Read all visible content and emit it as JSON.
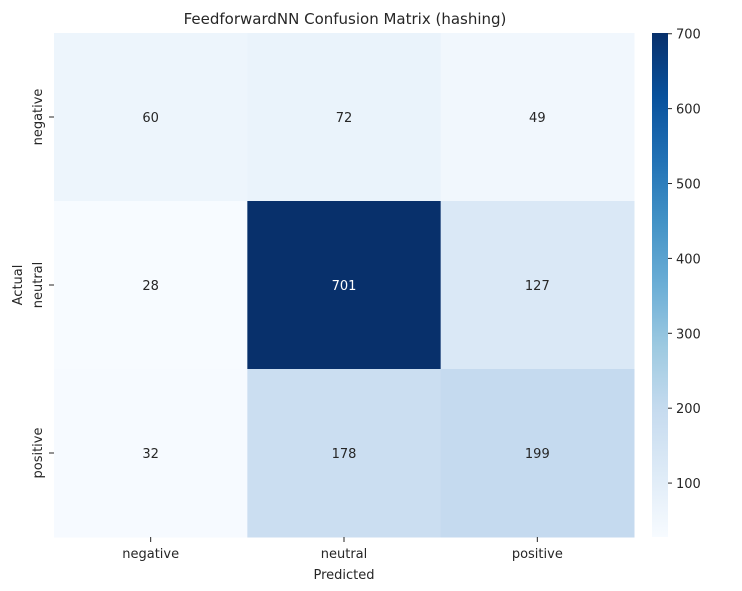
{
  "chart_data": {
    "type": "heatmap",
    "title": "FeedforwardNN Confusion Matrix (hashing)",
    "xlabel": "Predicted",
    "ylabel": "Actual",
    "x_categories": [
      "negative",
      "neutral",
      "positive"
    ],
    "y_categories": [
      "negative",
      "neutral",
      "positive"
    ],
    "values": [
      [
        60,
        72,
        49
      ],
      [
        28,
        701,
        127
      ],
      [
        32,
        178,
        199
      ]
    ],
    "colormap": "Blues",
    "color_range": [
      28,
      701
    ],
    "colorbar_ticks": [
      100,
      200,
      300,
      400,
      500,
      600,
      700
    ],
    "grid": false,
    "legend": "colorbar-right"
  }
}
